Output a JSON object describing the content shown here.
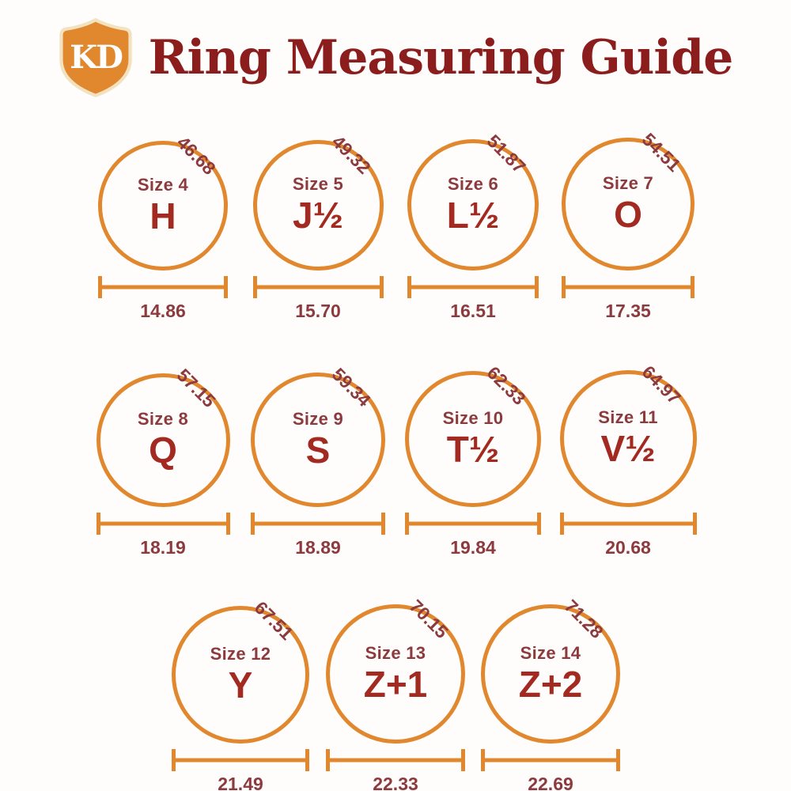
{
  "header": {
    "logo_text": "KD",
    "title": "Ring Measuring Guide"
  },
  "colors": {
    "accent_orange": "#E1872E",
    "title_red": "#8C1D1D",
    "label_maroon": "#8C3A3E",
    "letter_red": "#A32A20",
    "shield_border_cream": "#F2E2C0"
  },
  "rings": [
    {
      "size_label": "Size 4",
      "uk_letter": "H",
      "circumference_mm": "46.68",
      "diameter_mm": "14.86"
    },
    {
      "size_label": "Size 5",
      "uk_letter": "J½",
      "circumference_mm": "49.32",
      "diameter_mm": "15.70"
    },
    {
      "size_label": "Size 6",
      "uk_letter": "L½",
      "circumference_mm": "51.87",
      "diameter_mm": "16.51"
    },
    {
      "size_label": "Size 7",
      "uk_letter": "O",
      "circumference_mm": "54.51",
      "diameter_mm": "17.35"
    },
    {
      "size_label": "Size 8",
      "uk_letter": "Q",
      "circumference_mm": "57.15",
      "diameter_mm": "18.19"
    },
    {
      "size_label": "Size 9",
      "uk_letter": "S",
      "circumference_mm": "59.34",
      "diameter_mm": "18.89"
    },
    {
      "size_label": "Size 10",
      "uk_letter": "T½",
      "circumference_mm": "62.33",
      "diameter_mm": "19.84"
    },
    {
      "size_label": "Size 11",
      "uk_letter": "V½",
      "circumference_mm": "64.97",
      "diameter_mm": "20.68"
    },
    {
      "size_label": "Size 12",
      "uk_letter": "Y",
      "circumference_mm": "67.51",
      "diameter_mm": "21.49"
    },
    {
      "size_label": "Size 13",
      "uk_letter": "Z+1",
      "circumference_mm": "70.15",
      "diameter_mm": "22.33"
    },
    {
      "size_label": "Size 14",
      "uk_letter": "Z+2",
      "circumference_mm": "71.28",
      "diameter_mm": "22.69"
    }
  ],
  "layout_rows": [
    [
      0,
      1,
      2,
      3
    ],
    [
      4,
      5,
      6,
      7
    ],
    [
      8,
      9,
      10
    ]
  ]
}
